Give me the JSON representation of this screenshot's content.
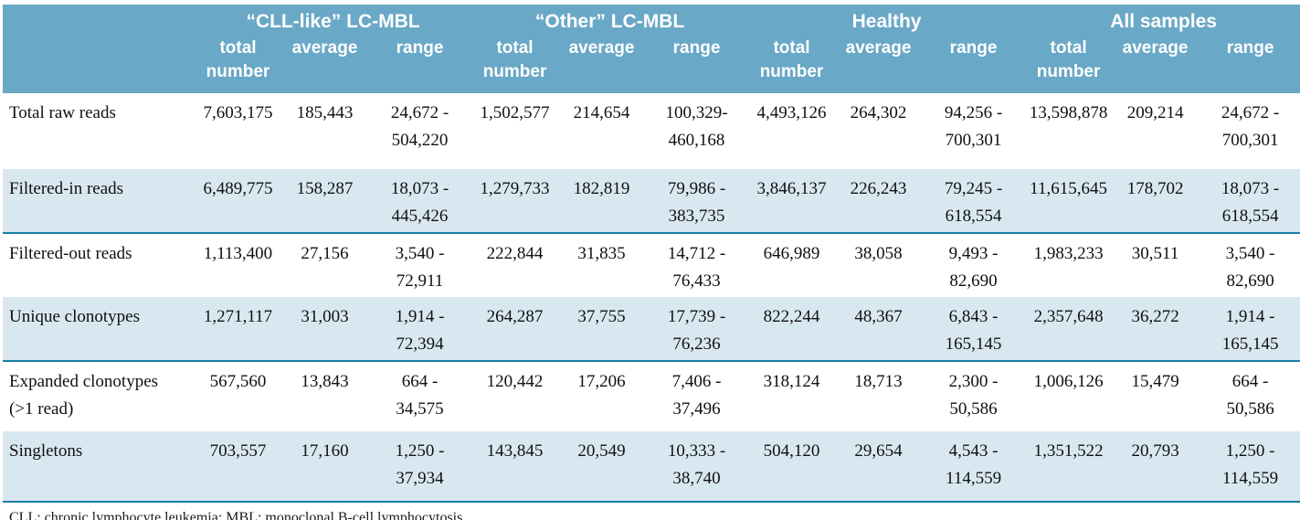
{
  "colors": {
    "header_bg": "#69a8c6",
    "shaded_row_bg": "#d9e8f0",
    "divider": "#1a7fa4"
  },
  "table": {
    "groups": [
      {
        "label": "“CLL-like” LC-MBL"
      },
      {
        "label": "“Other” LC-MBL"
      },
      {
        "label": "Healthy"
      },
      {
        "label": "All samples"
      }
    ],
    "sub_headers": {
      "total": "total number",
      "average": "average",
      "range": "range"
    },
    "rows": [
      {
        "label": "Total raw reads",
        "cells": [
          {
            "total": "7,603,175",
            "average": "185,443",
            "range1": "24,672 -",
            "range2": "504,220"
          },
          {
            "total": "1,502,577",
            "average": "214,654",
            "range1": "100,329-",
            "range2": "460,168"
          },
          {
            "total": "4,493,126",
            "average": "264,302",
            "range1": "94,256 -",
            "range2": "700,301"
          },
          {
            "total": "13,598,878",
            "average": "209,214",
            "range1": "24,672 -",
            "range2": "700,301"
          }
        ]
      },
      {
        "label": "Filtered-in reads",
        "cells": [
          {
            "total": "6,489,775",
            "average": "158,287",
            "range1": "18,073 -",
            "range2": "445,426"
          },
          {
            "total": "1,279,733",
            "average": "182,819",
            "range1": "79,986 -",
            "range2": "383,735"
          },
          {
            "total": "3,846,137",
            "average": "226,243",
            "range1": "79,245 -",
            "range2": "618,554"
          },
          {
            "total": "11,615,645",
            "average": "178,702",
            "range1": "18,073 -",
            "range2": "618,554"
          }
        ]
      },
      {
        "label": "Filtered-out reads",
        "cells": [
          {
            "total": "1,113,400",
            "average": "27,156",
            "range1": "3,540 -",
            "range2": "72,911"
          },
          {
            "total": "222,844",
            "average": "31,835",
            "range1": "14,712 -",
            "range2": "76,433"
          },
          {
            "total": "646,989",
            "average": "38,058",
            "range1": "9,493 -",
            "range2": "82,690"
          },
          {
            "total": "1,983,233",
            "average": "30,511",
            "range1": "3,540 -",
            "range2": "82,690"
          }
        ]
      },
      {
        "label": "Unique clonotypes",
        "cells": [
          {
            "total": "1,271,117",
            "average": "31,003",
            "range1": "1,914 -",
            "range2": "72,394"
          },
          {
            "total": "264,287",
            "average": "37,755",
            "range1": "17,739 -",
            "range2": "76,236"
          },
          {
            "total": "822,244",
            "average": "48,367",
            "range1": "6,843 -",
            "range2": "165,145"
          },
          {
            "total": "2,357,648",
            "average": "36,272",
            "range1": "1,914 -",
            "range2": "165,145"
          }
        ]
      },
      {
        "label": "Expanded clonotypes",
        "label2": "(>1 read)",
        "cells": [
          {
            "total": "567,560",
            "average": "13,843",
            "range1": "664 -",
            "range2": "34,575"
          },
          {
            "total": "120,442",
            "average": "17,206",
            "range1": "7,406 -",
            "range2": "37,496"
          },
          {
            "total": "318,124",
            "average": "18,713",
            "range1": "2,300 -",
            "range2": "50,586"
          },
          {
            "total": "1,006,126",
            "average": "15,479",
            "range1": "664 -",
            "range2": "50,586"
          }
        ]
      },
      {
        "label": "Singletons",
        "cells": [
          {
            "total": "703,557",
            "average": "17,160",
            "range1": "1,250 -",
            "range2": "37,934"
          },
          {
            "total": "143,845",
            "average": "20,549",
            "range1": "10,333 -",
            "range2": "38,740"
          },
          {
            "total": "504,120",
            "average": "29,654",
            "range1": "4,543 -",
            "range2": "114,559"
          },
          {
            "total": "1,351,522",
            "average": "20,793",
            "range1": "1,250 -",
            "range2": "114,559"
          }
        ]
      }
    ],
    "footnote": "CLL: chronic lymphocyte leukemia; MBL: monoclonal B-cell lymphocytosis."
  }
}
